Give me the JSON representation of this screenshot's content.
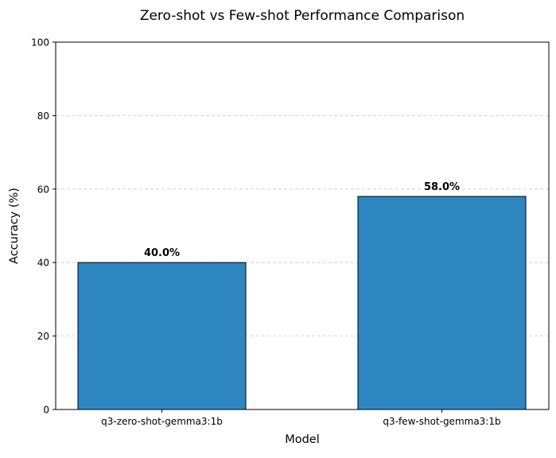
{
  "chart_data": {
    "type": "bar",
    "title": "Zero-shot vs Few-shot Performance Comparison",
    "xlabel": "Model",
    "ylabel": "Accuracy (%)",
    "categories": [
      "q3-zero-shot-gemma3:1b",
      "q3-few-shot-gemma3:1b"
    ],
    "values": [
      40.0,
      58.0
    ],
    "value_labels": [
      "40.0%",
      "58.0%"
    ],
    "ylim": [
      0,
      100
    ],
    "yticks": [
      0,
      20,
      40,
      60,
      80,
      100
    ],
    "ytick_labels": [
      "0",
      "20",
      "40",
      "60",
      "80",
      "100"
    ],
    "grid": "y-axis dashed",
    "legend": "none",
    "colors": {
      "bar_fill": "#2e86c1",
      "bar_edge": "#000000",
      "grid": "#c8c8c8"
    }
  }
}
